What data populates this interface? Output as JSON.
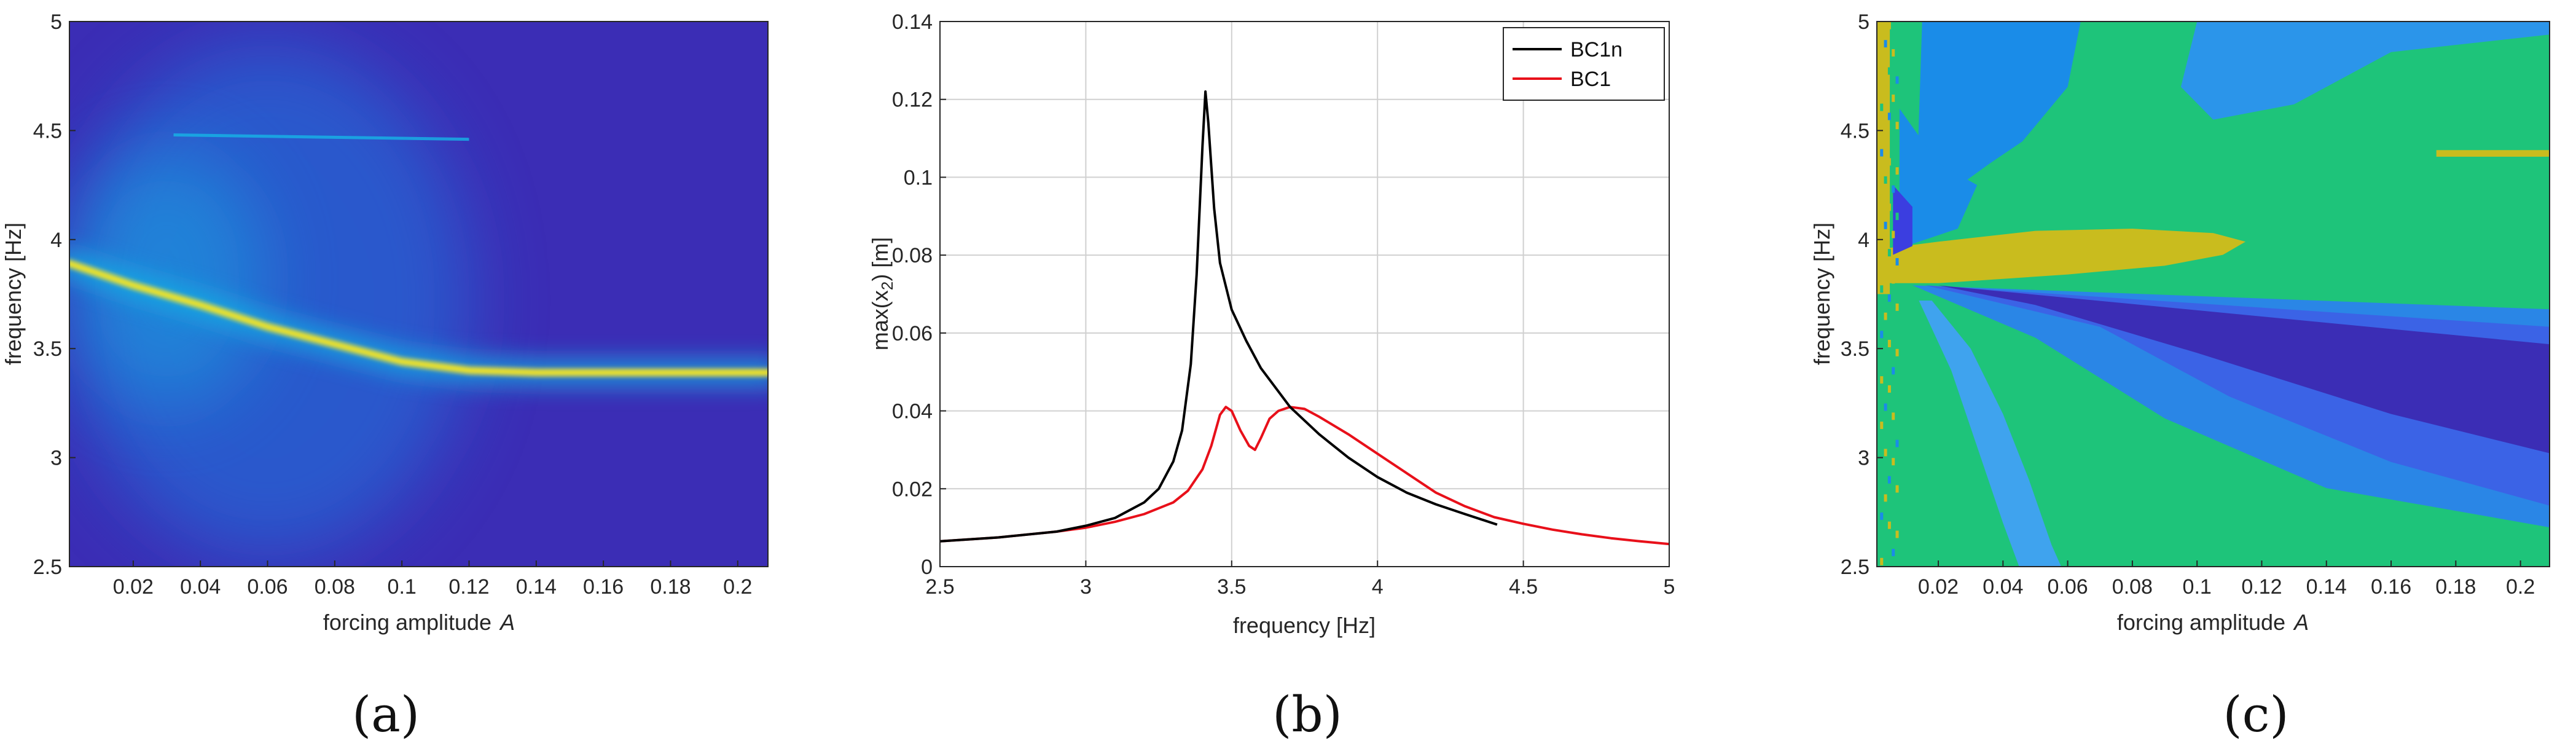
{
  "chart_data": [
    {
      "type": "heatmap",
      "caption": "(a)",
      "xlabel": "forcing amplitude",
      "xlabel_symbol": "A",
      "ylabel": "frequency [Hz]",
      "xlim": [
        0.001,
        0.209
      ],
      "ylim": [
        2.5,
        5
      ],
      "x_ticks": [
        0.02,
        0.04,
        0.06,
        0.08,
        0.1,
        0.12,
        0.14,
        0.16,
        0.18,
        0.2
      ],
      "x_tick_labels": [
        "0.02",
        "0.04",
        "0.06",
        "0.08",
        "0.1",
        "0.12",
        "0.14",
        "0.16",
        "0.18",
        "0.2"
      ],
      "y_ticks": [
        2.5,
        3,
        3.5,
        4,
        4.5,
        5
      ],
      "y_tick_labels": [
        "2.5",
        "3",
        "3.5",
        "4",
        "4.5",
        "5"
      ],
      "ridge": {
        "x": [
          0.001,
          0.02,
          0.04,
          0.06,
          0.08,
          0.1,
          0.11,
          0.12,
          0.14,
          0.16,
          0.18,
          0.2,
          0.209
        ],
        "y": [
          3.89,
          3.79,
          3.7,
          3.6,
          3.52,
          3.44,
          3.42,
          3.4,
          3.39,
          3.39,
          3.39,
          3.39,
          3.39
        ]
      },
      "faint_line": {
        "x": [
          0.032,
          0.12
        ],
        "y": [
          4.48,
          4.46
        ]
      },
      "colors": {
        "background": "#3b2db5",
        "ridge": "#f4e528",
        "halo": "#16b4e6",
        "mid": "#1f7de0"
      }
    },
    {
      "type": "line",
      "caption": "(b)",
      "xlabel": "frequency [Hz]",
      "ylabel": "max(x",
      "ylabel_subscript": "2",
      "ylabel_suffix": ") [m]",
      "xlim": [
        2.5,
        5
      ],
      "ylim": [
        0,
        0.14
      ],
      "grid": true,
      "legend_position": "top-right",
      "x_ticks": [
        2.5,
        3,
        3.5,
        4,
        4.5,
        5
      ],
      "x_tick_labels": [
        "2.5",
        "3",
        "3.5",
        "4",
        "4.5",
        "5"
      ],
      "y_ticks": [
        0,
        0.02,
        0.04,
        0.06,
        0.08,
        0.1,
        0.12,
        0.14
      ],
      "y_tick_labels": [
        "0",
        "0.02",
        "0.04",
        "0.06",
        "0.08",
        "0.1",
        "0.12",
        "0.14"
      ],
      "series": [
        {
          "name": "BC1n",
          "color": "#000000",
          "x": [
            2.5,
            2.7,
            2.9,
            3.0,
            3.1,
            3.2,
            3.25,
            3.3,
            3.33,
            3.36,
            3.38,
            3.4,
            3.41,
            3.42,
            3.44,
            3.46,
            3.5,
            3.55,
            3.6,
            3.7,
            3.8,
            3.9,
            4.0,
            4.1,
            4.2,
            4.3,
            4.41
          ],
          "y": [
            0.0065,
            0.0075,
            0.009,
            0.0105,
            0.0125,
            0.0165,
            0.02,
            0.027,
            0.035,
            0.052,
            0.075,
            0.108,
            0.122,
            0.114,
            0.092,
            0.078,
            0.066,
            0.058,
            0.051,
            0.041,
            0.034,
            0.028,
            0.023,
            0.019,
            0.016,
            0.0135,
            0.0108
          ]
        },
        {
          "name": "BC1",
          "color": "#e8101a",
          "x": [
            2.5,
            2.7,
            2.9,
            3.0,
            3.1,
            3.2,
            3.3,
            3.35,
            3.4,
            3.43,
            3.46,
            3.48,
            3.5,
            3.53,
            3.56,
            3.58,
            3.6,
            3.63,
            3.66,
            3.7,
            3.75,
            3.8,
            3.9,
            4.0,
            4.1,
            4.2,
            4.3,
            4.4,
            4.5,
            4.6,
            4.7,
            4.8,
            4.9,
            5.0
          ],
          "y": [
            0.0065,
            0.0075,
            0.009,
            0.01,
            0.0115,
            0.0135,
            0.0165,
            0.0195,
            0.025,
            0.031,
            0.039,
            0.041,
            0.04,
            0.035,
            0.031,
            0.03,
            0.033,
            0.038,
            0.04,
            0.041,
            0.0405,
            0.0385,
            0.034,
            0.029,
            0.024,
            0.019,
            0.0155,
            0.0127,
            0.011,
            0.0095,
            0.0083,
            0.0073,
            0.0065,
            0.0058
          ]
        }
      ]
    },
    {
      "type": "heatmap",
      "caption": "(c)",
      "xlabel": "forcing amplitude",
      "xlabel_symbol": "A",
      "ylabel": "frequency [Hz]",
      "xlim": [
        0.001,
        0.209
      ],
      "ylim": [
        2.5,
        5
      ],
      "x_ticks": [
        0.02,
        0.04,
        0.06,
        0.08,
        0.1,
        0.12,
        0.14,
        0.16,
        0.18,
        0.2
      ],
      "x_tick_labels": [
        "0.02",
        "0.04",
        "0.06",
        "0.08",
        "0.1",
        "0.12",
        "0.14",
        "0.16",
        "0.18",
        "0.2"
      ],
      "y_ticks": [
        2.5,
        3,
        3.5,
        4,
        4.5,
        5
      ],
      "y_tick_labels": [
        "2.5",
        "3",
        "3.5",
        "4",
        "4.5",
        "5"
      ],
      "regions": [
        {
          "name": "upper-green",
          "color": "#1ec47a",
          "points": [
            [
              0.006,
              5
            ],
            [
              0.209,
              5
            ],
            [
              0.209,
              3.72
            ],
            [
              0.1,
              3.78
            ],
            [
              0.006,
              3.8
            ]
          ]
        },
        {
          "name": "lower-green",
          "color": "#1ec47a",
          "points": [
            [
              0.006,
              3.8
            ],
            [
              0.04,
              3.75
            ],
            [
              0.209,
              2.66
            ],
            [
              0.209,
              2.5
            ],
            [
              0.006,
              2.5
            ]
          ]
        },
        {
          "name": "upper-blue",
          "color": "#1a8ce8",
          "points": [
            [
              0.015,
              5
            ],
            [
              0.064,
              5
            ],
            [
              0.06,
              4.7
            ],
            [
              0.046,
              4.45
            ],
            [
              0.036,
              4.35
            ],
            [
              0.022,
              4.2
            ],
            [
              0.013,
              4.1
            ]
          ]
        },
        {
          "name": "upper-band",
          "color": "#2b95ea",
          "points": [
            [
              0.1,
              5
            ],
            [
              0.209,
              5
            ],
            [
              0.209,
              4.94
            ],
            [
              0.16,
              4.86
            ],
            [
              0.13,
              4.62
            ],
            [
              0.105,
              4.55
            ],
            [
              0.095,
              4.7
            ]
          ]
        },
        {
          "name": "left-blue",
          "color": "#1a8ce8",
          "points": [
            [
              0.008,
              4.6
            ],
            [
              0.02,
              4.35
            ],
            [
              0.032,
              4.25
            ],
            [
              0.026,
              4.05
            ],
            [
              0.012,
              3.98
            ],
            [
              0.008,
              4.2
            ]
          ]
        },
        {
          "name": "blue-streak",
          "color": "#3fa3ee",
          "points": [
            [
              0.018,
              3.72
            ],
            [
              0.03,
              3.5
            ],
            [
              0.04,
              3.2
            ],
            [
              0.048,
              2.9
            ],
            [
              0.055,
              2.6
            ],
            [
              0.058,
              2.5
            ],
            [
              0.045,
              2.5
            ],
            [
              0.04,
              2.7
            ],
            [
              0.032,
              3.05
            ],
            [
              0.024,
              3.4
            ],
            [
              0.014,
              3.72
            ]
          ]
        },
        {
          "name": "lower-blue",
          "color": "#2a86e6",
          "points": [
            [
              0.012,
              3.79
            ],
            [
              0.209,
              3.68
            ],
            [
              0.209,
              2.68
            ],
            [
              0.14,
              2.86
            ],
            [
              0.09,
              3.18
            ],
            [
              0.05,
              3.55
            ]
          ]
        },
        {
          "name": "mid-blue",
          "color": "#3b63e6",
          "points": [
            [
              0.016,
              3.79
            ],
            [
              0.209,
              3.6
            ],
            [
              0.209,
              2.78
            ],
            [
              0.16,
              2.98
            ],
            [
              0.11,
              3.28
            ],
            [
              0.07,
              3.6
            ]
          ]
        },
        {
          "name": "deep-purple",
          "color": "#3b2db5",
          "points": [
            [
              0.02,
              3.79
            ],
            [
              0.209,
              3.52
            ],
            [
              0.209,
              3.02
            ],
            [
              0.16,
              3.2
            ],
            [
              0.1,
              3.48
            ],
            [
              0.05,
              3.7
            ]
          ]
        },
        {
          "name": "yellow-lobe",
          "color": "#c9bc1e",
          "points": [
            [
              0.004,
              3.8
            ],
            [
              0.02,
              3.8
            ],
            [
              0.06,
              3.84
            ],
            [
              0.09,
              3.88
            ],
            [
              0.108,
              3.93
            ],
            [
              0.115,
              3.99
            ],
            [
              0.105,
              4.03
            ],
            [
              0.08,
              4.05
            ],
            [
              0.05,
              4.04
            ],
            [
              0.02,
              3.99
            ],
            [
              0.004,
              3.96
            ]
          ]
        },
        {
          "name": "yellow-stripe",
          "color": "#c9bc1e",
          "points": [
            [
              0.174,
              4.41
            ],
            [
              0.209,
              4.41
            ],
            [
              0.209,
              4.38
            ],
            [
              0.174,
              4.38
            ]
          ]
        },
        {
          "name": "left-purple",
          "color": "#3b3ee0",
          "points": [
            [
              0.006,
              4.25
            ],
            [
              0.012,
              4.15
            ],
            [
              0.012,
              3.97
            ],
            [
              0.006,
              3.93
            ]
          ]
        },
        {
          "name": "left-yellow",
          "color": "#c9bc1e",
          "points": [
            [
              0.001,
              5
            ],
            [
              0.005,
              5
            ],
            [
              0.005,
              3.75
            ],
            [
              0.001,
              3.75
            ]
          ]
        }
      ]
    }
  ]
}
